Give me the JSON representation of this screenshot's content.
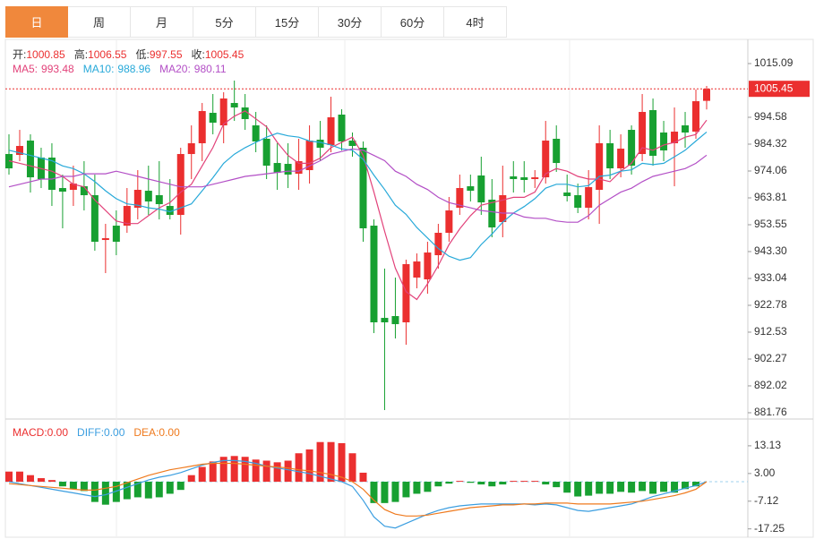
{
  "tabs": [
    "日",
    "周",
    "月",
    "5分",
    "15分",
    "30分",
    "60分",
    "4时"
  ],
  "active_tab": 0,
  "chart_data": [
    {
      "type": "candlestick",
      "ohlc_labels": [
        "开:",
        "高:",
        "低:",
        "收:"
      ],
      "up_color": "#eb2f2f",
      "down_color": "#17a031",
      "ylim": [
        879.36,
        1024.32
      ],
      "yticks": [
        1015.09,
        994.58,
        984.32,
        974.06,
        963.81,
        953.55,
        {
          "value": 943.3,
          "label": "943.30"
        },
        933.04,
        922.78,
        912.53,
        902.27,
        892.02,
        881.76
      ],
      "open": [
        980.55,
        980.21,
        985.68,
        979.19,
        979.19,
        967.56,
        966.88,
        968.24,
        964.83,
        947.73,
        953.2,
        953.2,
        960.04,
        966.53,
        964.83,
        960.72,
        957.3,
        980.55,
        984.66,
        996.28,
        991.49,
        1000.04,
        998.33,
        991.49,
        986.37,
        977.13,
        976.79,
        973.03,
        974.4,
        986.02,
        983.97,
        995.6,
        985.68,
        982.95,
        953.2,
        917.98,
        918.67,
        916.28,
        933.37,
        932.69,
        941.92,
        950.47,
        960.04,
        968.24,
        972.35,
        963.12,
        954.57,
        972.01,
        971.66,
        970.98,
        971.66,
        986.37,
        965.85,
        964.83,
        960.04,
        966.88,
        984.66,
        975.08,
        989.78,
        980.55,
        997.31,
        988.76,
        984.66,
        991.49,
        989.1,
        1000.85
      ],
      "high": [
        988.07,
        989.78,
        988.07,
        982.95,
        984.66,
        972.69,
        976.11,
        977.82,
        972.69,
        953.89,
        959.01,
        967.56,
        974.4,
        976.11,
        977.82,
        970.98,
        982.95,
        991.49,
        1000.04,
        1003.46,
        1004.14,
        1008.59,
        1003.46,
        996.62,
        991.49,
        984.66,
        984.66,
        986.37,
        991.49,
        993.2,
        1002.43,
        997.65,
        988.76,
        985.34,
        955.59,
        936.79,
        933.37,
        940.21,
        942.6,
        947.05,
        953.89,
        964.14,
        972.69,
        972.69,
        979.53,
        970.98,
        976.11,
        977.82,
        977.82,
        974.4,
        993.2,
        991.49,
        972.69,
        969.27,
        974.4,
        991.49,
        989.78,
        988.07,
        991.49,
        1003.46,
        1001.75,
        993.2,
        998.33,
        996.62,
        1005.17,
        1006.55
      ],
      "low": [
        972.69,
        977.82,
        965.85,
        967.56,
        960.72,
        952.18,
        960.72,
        959.01,
        943.63,
        935.08,
        941.92,
        950.47,
        955.59,
        957.3,
        955.59,
        955.59,
        949.78,
        970.98,
        977.82,
        988.07,
        984.66,
        993.2,
        989.78,
        981.24,
        970.98,
        966.88,
        967.56,
        966.88,
        969.27,
        977.82,
        981.24,
        981.92,
        979.53,
        947.05,
        912.17,
        882.77,
        910.12,
        907.73,
        929.27,
        927.21,
        936.79,
        947.05,
        957.3,
        962.43,
        957.3,
        948.76,
        948.76,
        965.85,
        965.85,
        967.56,
        969.27,
        973.72,
        962.43,
        957.99,
        955.59,
        953.89,
        970.98,
        971.66,
        972.69,
        977.82,
        976.11,
        977.82,
        968.24,
        982.95,
        986.37,
        997.55
      ],
      "close": [
        975.08,
        983.63,
        971.66,
        970.98,
        966.88,
        966.19,
        969.27,
        964.83,
        947.05,
        948.41,
        947.05,
        960.72,
        966.88,
        962.43,
        961.41,
        957.3,
        980.55,
        984.66,
        996.96,
        992.52,
        1001.75,
        998.33,
        993.89,
        985.34,
        976.11,
        973.37,
        972.69,
        977.82,
        985.68,
        982.95,
        994.57,
        985.34,
        983.63,
        952.18,
        916.28,
        916.28,
        915.59,
        938.5,
        939.52,
        942.94,
        950.47,
        959.01,
        967.56,
        966.53,
        962.09,
        952.52,
        964.83,
        970.98,
        970.64,
        971.66,
        985.68,
        977.13,
        964.49,
        960.04,
        967.9,
        984.66,
        975.08,
        982.6,
        976.11,
        996.62,
        979.87,
        981.92,
        989.1,
        988.76,
        1000.72,
        1005.45
      ],
      "series": [
        {
          "name": "MA5:",
          "color": "#e2427a",
          "values": [
            978,
            977,
            976,
            975,
            974,
            972,
            969,
            968,
            963,
            959,
            955,
            954,
            954,
            957,
            960,
            962,
            966,
            969,
            976,
            983,
            992,
            995,
            997,
            994,
            991,
            985,
            980,
            977,
            977,
            979,
            983,
            985,
            987,
            980,
            966,
            951,
            937,
            928,
            925,
            931,
            938,
            946,
            952,
            957,
            961,
            962,
            963,
            964,
            964,
            966,
            973,
            975,
            974,
            972,
            971,
            971,
            970,
            974,
            977,
            983,
            982,
            984,
            985,
            987,
            988,
            993.48
          ]
        },
        {
          "name": "MA10:",
          "color": "#27a9d9",
          "values": [
            982,
            981,
            980,
            979,
            978,
            976,
            975,
            973,
            970,
            966.5,
            963.5,
            961.5,
            961,
            960,
            959.5,
            958.5,
            960,
            961.5,
            966.5,
            971.5,
            977,
            980.5,
            983,
            985,
            987,
            988.5,
            987.5,
            987,
            985.5,
            985,
            984,
            982.5,
            982,
            978.5,
            972.5,
            967,
            961,
            957.5,
            952.5,
            948.5,
            944.5,
            941.5,
            940,
            941,
            946,
            950,
            954.5,
            958,
            960.5,
            963.5,
            967.5,
            969,
            969,
            968,
            968.5,
            972,
            972.5,
            974,
            974.5,
            977,
            976.5,
            977,
            979.5,
            982,
            985.5,
            988.96
          ]
        },
        {
          "name": "MA20:",
          "color": "#b34fc6",
          "values": [
            968,
            969,
            970,
            971,
            971,
            972,
            972,
            973,
            973,
            973,
            974,
            973,
            972,
            971,
            970,
            969,
            968,
            968,
            968,
            969,
            970,
            971,
            972,
            972.5,
            973,
            973.5,
            974,
            974,
            976,
            978,
            980.5,
            981.5,
            982.5,
            982,
            980,
            978,
            974,
            972,
            969,
            967,
            964,
            962,
            961,
            960,
            959,
            958.5,
            958,
            958,
            956.5,
            956,
            956,
            955,
            954.5,
            954.5,
            957,
            961,
            963.5,
            966,
            967.5,
            970,
            972,
            973,
            974,
            975,
            977,
            980.11
          ]
        }
      ]
    },
    {
      "type": "macd",
      "up_color": "#eb2f2f",
      "down_color": "#17a031",
      "ylim": [
        -20.29,
        22.92
      ],
      "yticks": [
        13.13,
        {
          "value": 3,
          "label": "3.00"
        },
        -7.12,
        -17.25
      ],
      "legend_values": [
        "0.00",
        "0.00",
        "0.00"
      ],
      "series": [
        {
          "name": "MACD:",
          "color": "#eb2f2f",
          "values": [
            3.7,
            3.7,
            2.4,
            1.3,
            0.6,
            -1.7,
            -2.7,
            -3.4,
            -7.4,
            -8.4,
            -7.4,
            -6.4,
            -5.7,
            -6.1,
            -5.7,
            -4.4,
            -3,
            2.4,
            5.4,
            7.4,
            9.1,
            9.4,
            9.1,
            8.1,
            7.7,
            7.1,
            7.7,
            10.4,
            11.8,
            14.5,
            14.5,
            14.1,
            10.4,
            3.3,
            -7.8,
            -7.8,
            -7.4,
            -5.7,
            -4.4,
            -3.7,
            -1.7,
            -0.7,
            0.3,
            -0.4,
            -1,
            -1.7,
            -1,
            0.3,
            0.3,
            0.3,
            -1,
            -2,
            -4,
            -5.4,
            -5.1,
            -4.4,
            -4.4,
            -3.7,
            -4,
            -3.4,
            -4.4,
            -3.7,
            -4,
            -2.7,
            -1.7,
            0
          ]
        },
        {
          "name": "DIFF:",
          "color": "#3b9ee0",
          "values": [
            0,
            -0.71,
            -1.39,
            -2.07,
            -2.74,
            -3.42,
            -4.09,
            -4.77,
            -5.44,
            -4.77,
            -3.42,
            -2.07,
            -0.71,
            0.64,
            1.65,
            2.32,
            3.34,
            4.69,
            6.04,
            7.05,
            7.73,
            7.73,
            7.39,
            6.71,
            5.7,
            5.03,
            4.35,
            3.68,
            3,
            1.99,
            0.97,
            0,
            -1.73,
            -6.79,
            -12.87,
            -16.25,
            -16.92,
            -15.24,
            -13.55,
            -11.86,
            -10.51,
            -9.49,
            -8.82,
            -8.48,
            -8.14,
            -8.14,
            -8.14,
            -8.14,
            -8.14,
            -8.48,
            -8.14,
            -8.48,
            -9.49,
            -10.51,
            -10.84,
            -10.17,
            -9.49,
            -8.82,
            -8.14,
            -6.79,
            -5.44,
            -4.43,
            -3.42,
            -2.4,
            -1.39,
            0
          ]
        },
        {
          "name": "DEA:",
          "color": "#ef7a1e",
          "values": [
            -0.71,
            -1.05,
            -1.39,
            -1.73,
            -2.07,
            -2.4,
            -2.74,
            -3.08,
            -3.08,
            -2.4,
            -1.73,
            -0.38,
            0.97,
            2.32,
            3.34,
            4.35,
            5.03,
            5.7,
            6.38,
            6.71,
            6.71,
            6.71,
            6.38,
            6.04,
            5.7,
            5.36,
            5.03,
            4.35,
            4.01,
            3.34,
            2.66,
            1.65,
            0,
            -2.74,
            -6.79,
            -10.17,
            -11.86,
            -12.53,
            -12.53,
            -12.2,
            -11.52,
            -10.84,
            -10.17,
            -9.49,
            -9.16,
            -8.82,
            -8.48,
            -8.48,
            -8.14,
            -8.14,
            -7.81,
            -7.81,
            -7.81,
            -8.14,
            -8.14,
            -8.14,
            -8.14,
            -7.81,
            -7.47,
            -7.13,
            -6.46,
            -5.78,
            -5.1,
            -4.09,
            -2.74,
            0
          ]
        }
      ]
    }
  ]
}
